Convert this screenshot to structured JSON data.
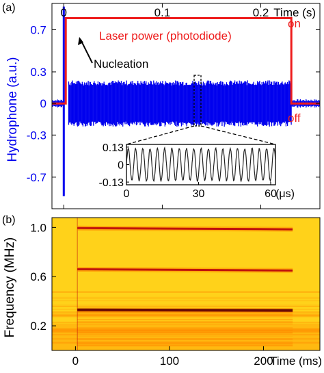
{
  "chart_data": [
    {
      "panel_label": "(a)",
      "type": "line",
      "xlabel": "Time (s)",
      "x_ticks": [
        0,
        0.1,
        0.2
      ],
      "xlim": [
        -0.012,
        0.26
      ],
      "ylabel": "Hydrophone (a.u.)",
      "y_ticks": [
        0.7,
        0.3,
        0,
        -0.3,
        -0.7
      ],
      "y_tick_labels": [
        "0.7",
        "0.3",
        "0",
        "-0.3",
        "-0.7"
      ],
      "ylim": [
        -1.0,
        0.95
      ],
      "grid": false,
      "colors": {
        "hydrophone": "#0000ee",
        "laser": "#ee1c1c"
      },
      "series": [
        {
          "name": "Laser power (photodiode)",
          "color": "#ee1c1c",
          "x": [
            -0.012,
            0.002,
            0.002,
            0.231,
            0.231,
            0.26
          ],
          "y": [
            0.0,
            0.0,
            0.81,
            0.81,
            0.0,
            0.0
          ]
        },
        {
          "name": "Hydrophone",
          "color": "#0000ee",
          "spike": {
            "x": 0.0,
            "y_min": -0.88,
            "y_max": 0.92
          },
          "envelope": {
            "x_start": 0.005,
            "x_end": 0.231,
            "y_min": -0.22,
            "y_max": 0.22
          },
          "baseline_noise": 0.04
        }
      ],
      "annotations": {
        "laser_label": "Laser power (photodiode)",
        "on_label": "on",
        "off_label": "off",
        "nucleation_label": "Nucleation"
      },
      "inset": {
        "type": "line",
        "xlabel_unit": "(μs)",
        "x_ticks": [
          0,
          30,
          60
        ],
        "xlim": [
          0,
          62
        ],
        "y_ticks": [
          0.13,
          0,
          -0.13
        ],
        "y_tick_labels": [
          "0.13",
          "0",
          "-0.13"
        ],
        "ylim": [
          -0.15,
          0.15
        ],
        "signal_amplitude": 0.12,
        "signal_frequency_mhz": 0.33
      }
    },
    {
      "panel_label": "(b)",
      "type": "heatmap",
      "xlabel": "Time (ms)",
      "x_ticks": [
        0,
        100,
        200
      ],
      "xlim": [
        -25,
        260
      ],
      "ylabel": "Frequency (MHz)",
      "y_ticks": [
        1.0,
        0.6,
        0.2
      ],
      "y_tick_labels": [
        "1.0",
        "0.6",
        "0.2"
      ],
      "ylim": [
        0.0,
        1.08
      ],
      "on_interval_ms": [
        2,
        231
      ],
      "bands": [
        {
          "freq_start": 0.995,
          "freq_end": 0.985,
          "strength": 0.85
        },
        {
          "freq_start": 0.66,
          "freq_end": 0.65,
          "strength": 0.8
        },
        {
          "freq_start": 0.33,
          "freq_end": 0.325,
          "strength": 1.0
        }
      ],
      "colors": {
        "background": "#ffd21a",
        "mid": "#ff8c00",
        "band": "#c0140c",
        "peak": "#6a0a05"
      }
    }
  ]
}
